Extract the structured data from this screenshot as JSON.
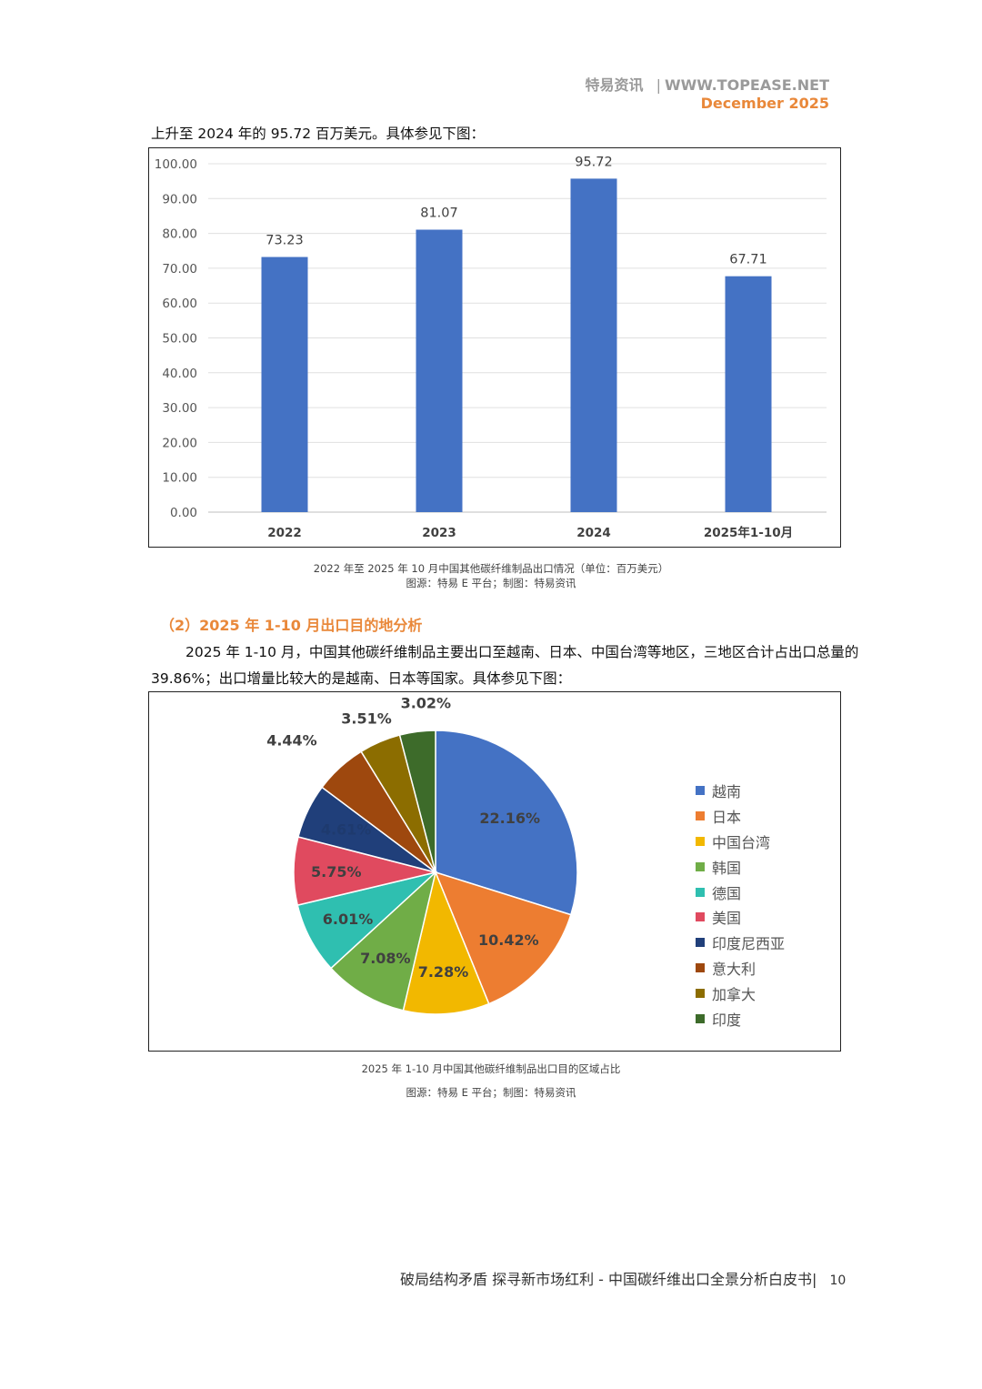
{
  "header": {
    "brand": "特易资讯",
    "site": "WWW.TOPEASE.NET",
    "date": "December 2025"
  },
  "intro_text": "上升至 2024 年的 95.72 百万美元。具体参见下图：",
  "colors": {
    "bar": "#4472c4",
    "accent": "#e9883a"
  },
  "chart_data": [
    {
      "type": "bar",
      "categories": [
        "2022",
        "2023",
        "2024",
        "2025年1-10月"
      ],
      "values": [
        73.23,
        81.07,
        95.72,
        67.71
      ],
      "value_labels": [
        "73.23",
        "81.07",
        "95.72",
        "67.71"
      ],
      "yticks": [
        "0.00",
        "10.00",
        "20.00",
        "30.00",
        "40.00",
        "50.00",
        "60.00",
        "70.00",
        "80.00",
        "90.00",
        "100.00"
      ],
      "ylim": [
        0,
        100
      ],
      "grid": true,
      "title": "",
      "xlabel": "",
      "ylabel": ""
    },
    {
      "type": "pie",
      "labels": [
        "越南",
        "日本",
        "中国台湾",
        "韩国",
        "德国",
        "美国",
        "印度尼西亚",
        "意大利",
        "加拿大",
        "印度"
      ],
      "values": [
        22.16,
        10.42,
        7.28,
        7.08,
        6.01,
        5.75,
        4.61,
        4.44,
        3.51,
        3.02
      ],
      "value_labels": [
        "22.16%",
        "10.42%",
        "7.28%",
        "7.08%",
        "6.01%",
        "5.75%",
        "4.61%",
        "4.44%",
        "3.51%",
        "3.02%"
      ],
      "colors": [
        "#4472c4",
        "#ed7d31",
        "#f2b800",
        "#70ad47",
        "#2fbfb0",
        "#e04a5f",
        "#203f7a",
        "#9e480e",
        "#8c6d00",
        "#3d6b2a"
      ],
      "legend": "right"
    }
  ],
  "captions": {
    "bar_title": "2022 年至 2025 年 10 月中国其他碳纤维制品出口情况（单位：百万美元）",
    "bar_source": "图源：特易 E 平台；制图：特易资讯",
    "pie_title": "2025 年 1-10 月中国其他碳纤维制品出口目的区域占比",
    "pie_source": "图源：特易 E 平台；制图：特易资讯"
  },
  "section_title": "（2）2025 年 1-10 月出口目的地分析",
  "body_para": {
    "line1": "2025 年 1-10 月，中国其他碳纤维制品主要出口至越南、日本、中国台湾等地区，三地区合计占出口总量的",
    "line2": "39.86%；出口增量比较大的是越南、日本等国家。具体参见下图："
  },
  "footer": {
    "text": "破局结构矛盾 探寻新市场红利 - 中国碳纤维出口全景分析白皮书|",
    "page": "10"
  }
}
